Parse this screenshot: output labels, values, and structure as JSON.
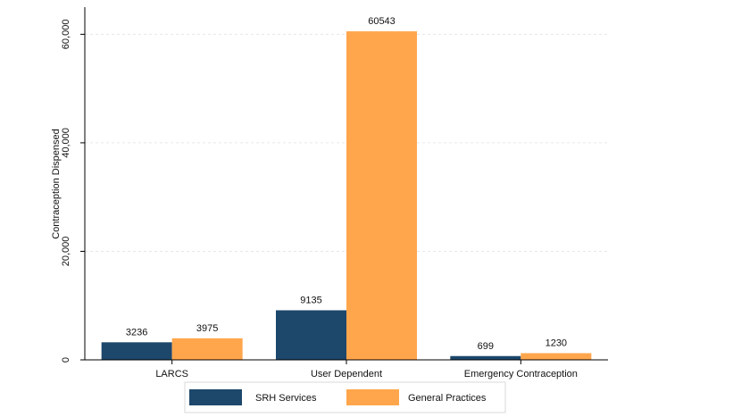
{
  "chart_data": {
    "type": "bar",
    "title": "",
    "xlabel": "",
    "ylabel": "Contraception Dispensed",
    "categories": [
      "LARCS",
      "User Dependent",
      "Emergency Contraception"
    ],
    "series": [
      {
        "name": "SRH Services",
        "color": "#1d476b",
        "values": [
          3236,
          9135,
          699
        ]
      },
      {
        "name": "General Practices",
        "color": "#ffa64c",
        "values": [
          3975,
          60543,
          1230
        ]
      }
    ],
    "ylim": [
      0,
      65000
    ],
    "yticks": [
      0,
      20000,
      40000,
      60000
    ],
    "ytick_labels": [
      "0",
      "20,000",
      "40,000",
      "60,000"
    ],
    "data_labels": [
      [
        "3236",
        "9135",
        "699"
      ],
      [
        "3975",
        "60543",
        "1230"
      ]
    ],
    "grid": true,
    "legend_position": "bottom"
  }
}
